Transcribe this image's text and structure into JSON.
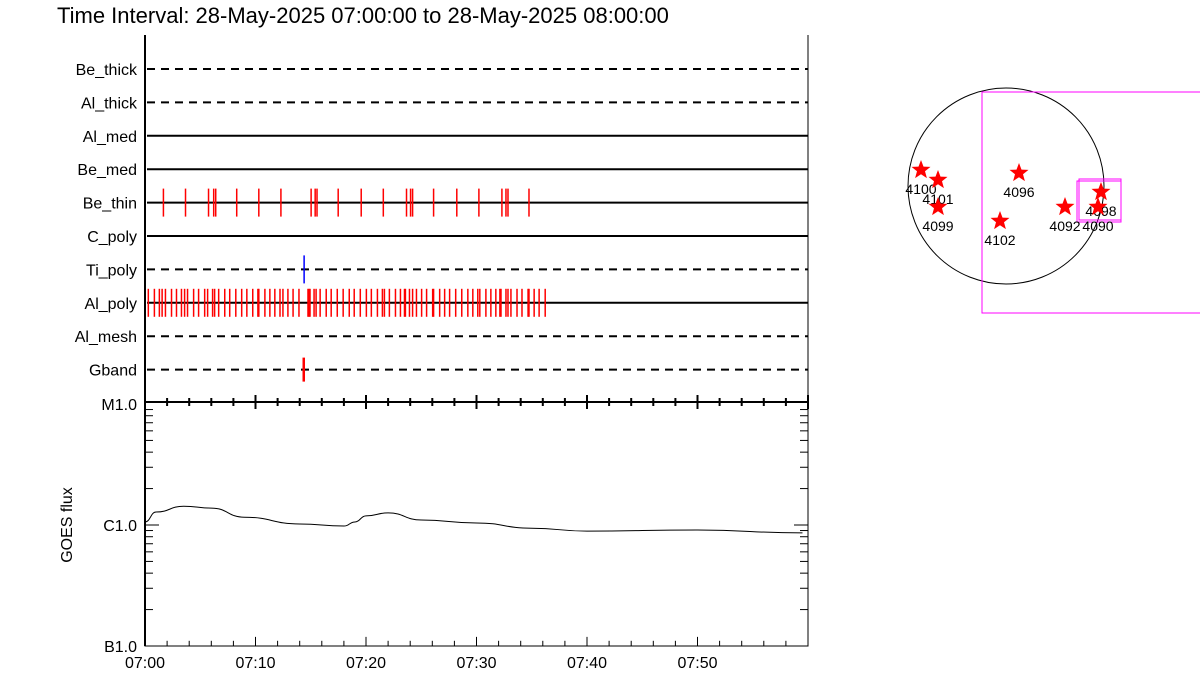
{
  "title": "Time Interval: 28-May-2025 07:00:00 to 28-May-2025 08:00:00",
  "colors": {
    "event": "#ff0000",
    "ti_event": "#0000ff",
    "axes": "#000000",
    "fov": "#ff00ff",
    "star": "#ff0000"
  },
  "chart_data": [
    {
      "type": "event-timeline",
      "xlim": [
        "07:00:00",
        "08:00:00"
      ],
      "rows": [
        {
          "name": "Be_thick",
          "style": "dashed",
          "events": []
        },
        {
          "name": "Al_thick",
          "style": "dashed",
          "events": []
        },
        {
          "name": "Al_med",
          "style": "solid",
          "events": []
        },
        {
          "name": "Be_med",
          "style": "solid",
          "events": []
        },
        {
          "name": "Be_thin",
          "style": "solid",
          "color": "#ff0000",
          "events": [
            "07:01:40",
            "07:03:40",
            "07:05:45",
            "07:06:13",
            "07:06:24",
            "07:08:18",
            "07:10:18",
            "07:12:18",
            "07:15:02",
            "07:15:24",
            "07:15:34",
            "07:17:29",
            "07:19:34",
            "07:21:34",
            "07:23:40",
            "07:24:02",
            "07:24:13",
            "07:26:07",
            "07:28:13",
            "07:30:13",
            "07:32:18",
            "07:32:40",
            "07:32:51",
            "07:34:45"
          ]
        },
        {
          "name": "C_poly",
          "style": "solid",
          "events": []
        },
        {
          "name": "Ti_poly",
          "style": "dashed",
          "color": "#0000ff",
          "events": [
            "07:14:24"
          ]
        },
        {
          "name": "Al_poly",
          "style": "solid",
          "color": "#ff0000",
          "events": [
            "07:00:18",
            "07:00:51",
            "07:01:18",
            "07:01:33",
            "07:01:51",
            "07:02:24",
            "07:02:51",
            "07:03:18",
            "07:03:35",
            "07:03:51",
            "07:04:24",
            "07:04:51",
            "07:05:24",
            "07:05:40",
            "07:06:07",
            "07:06:18",
            "07:06:40",
            "07:07:13",
            "07:07:40",
            "07:08:13",
            "07:08:45",
            "07:09:13",
            "07:09:45",
            "07:10:13",
            "07:10:18",
            "07:10:51",
            "07:11:18",
            "07:11:45",
            "07:12:13",
            "07:12:29",
            "07:12:56",
            "07:13:24",
            "07:13:56",
            "07:14:45",
            "07:14:51",
            "07:14:56",
            "07:15:18",
            "07:15:29",
            "07:15:51",
            "07:16:24",
            "07:16:51",
            "07:17:24",
            "07:17:56",
            "07:18:29",
            "07:18:56",
            "07:19:29",
            "07:20:02",
            "07:20:29",
            "07:21:02",
            "07:21:29",
            "07:21:40",
            "07:22:07",
            "07:22:40",
            "07:23:07",
            "07:23:29",
            "07:23:34",
            "07:23:56",
            "07:24:13",
            "07:24:34",
            "07:25:02",
            "07:25:29",
            "07:26:02",
            "07:26:07",
            "07:26:40",
            "07:27:07",
            "07:27:34",
            "07:28:07",
            "07:28:40",
            "07:29:13",
            "07:29:40",
            "07:30:07",
            "07:30:18",
            "07:30:51",
            "07:31:18",
            "07:31:45",
            "07:32:07",
            "07:32:13",
            "07:32:40",
            "07:32:51",
            "07:33:07",
            "07:33:40",
            "07:34:07",
            "07:34:40",
            "07:34:45",
            "07:35:13",
            "07:35:40",
            "07:36:13"
          ]
        },
        {
          "name": "Al_mesh",
          "style": "dashed",
          "events": []
        },
        {
          "name": "Gband",
          "style": "dashed",
          "color": "#ff0000",
          "events": [
            "07:14:22"
          ]
        }
      ]
    },
    {
      "type": "line",
      "ylabel": "GOES flux",
      "yscale": "log",
      "ylim": [
        1e-07,
        1e-05
      ],
      "yticks": [
        {
          "value": 1e-05,
          "label": "M1.0"
        },
        {
          "value": 1e-06,
          "label": "C1.0"
        },
        {
          "value": 1e-07,
          "label": "B1.0"
        }
      ],
      "xlim": [
        "07:00:00",
        "08:00:00"
      ],
      "xticks": [
        "07:00",
        "07:10",
        "07:20",
        "07:30",
        "07:40",
        "07:50"
      ],
      "x": [
        "07:00:00",
        "07:01:00",
        "07:03:30",
        "07:06:00",
        "07:09:00",
        "07:14:00",
        "07:18:00",
        "07:19:00",
        "07:20:00",
        "07:22:00",
        "07:25:00",
        "07:30:00",
        "07:35:00",
        "07:40:00",
        "07:50:00",
        "07:59:30"
      ],
      "y": [
        1.06e-06,
        1.28e-06,
        1.43e-06,
        1.38e-06,
        1.16e-06,
        1.02e-06,
        9.8e-07,
        1.06e-06,
        1.19e-06,
        1.26e-06,
        1.1e-06,
        1.04e-06,
        9.4e-07,
        8.9e-07,
        9.1e-07,
        8.6e-07
      ]
    }
  ],
  "map": {
    "regions": [
      "4100",
      "4101",
      "4099",
      "4096",
      "4102",
      "4092",
      "4098",
      "4090"
    ]
  }
}
